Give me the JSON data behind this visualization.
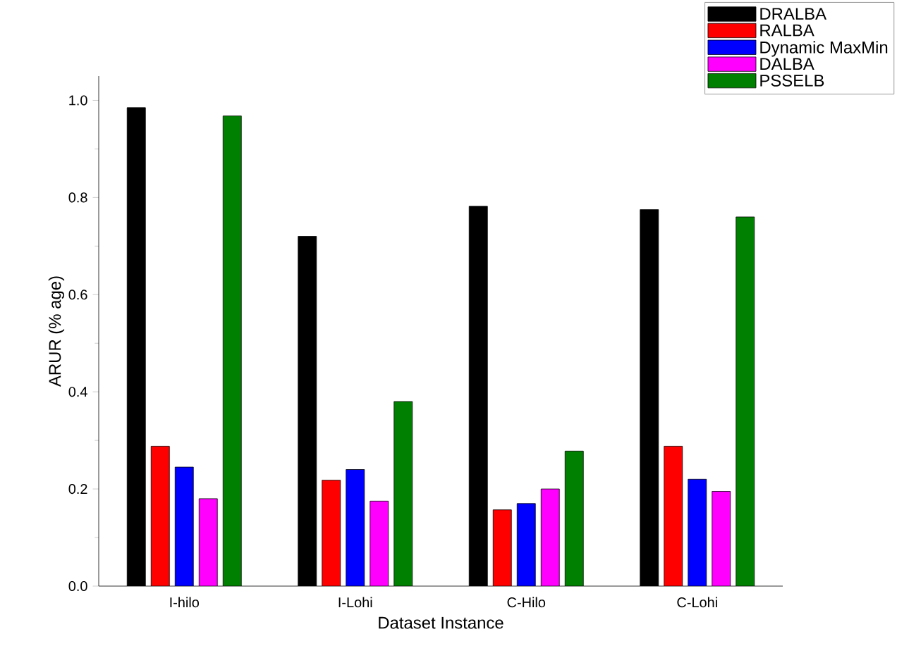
{
  "chart_data": {
    "type": "bar",
    "xlabel": "Dataset Instance",
    "ylabel": "ARUR (% age)",
    "categories": [
      "I-hilo",
      "I-Lohi",
      "C-Hilo",
      "C-Lohi"
    ],
    "series": [
      {
        "name": "DRALBA",
        "color": "#000000",
        "values": [
          0.985,
          0.72,
          0.782,
          0.775
        ]
      },
      {
        "name": "RALBA",
        "color": "#ff0000",
        "values": [
          0.288,
          0.218,
          0.157,
          0.288
        ]
      },
      {
        "name": "Dynamic MaxMin",
        "color": "#0000ff",
        "values": [
          0.245,
          0.24,
          0.17,
          0.22
        ]
      },
      {
        "name": "DALBA",
        "color": "#ff00ff",
        "values": [
          0.18,
          0.175,
          0.2,
          0.195
        ]
      },
      {
        "name": "PSSELB",
        "color": "#008000",
        "values": [
          0.968,
          0.38,
          0.278,
          0.76
        ]
      }
    ],
    "ylim": [
      0,
      1.05
    ],
    "yticks": [
      "0.0",
      0.2,
      0.4,
      0.6,
      0.8,
      "1.0"
    ],
    "legend": "top right"
  }
}
